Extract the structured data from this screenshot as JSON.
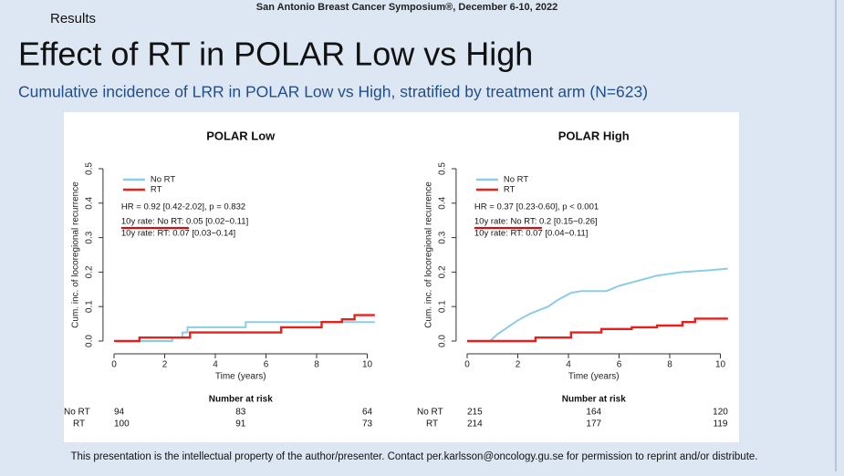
{
  "slide": {
    "conference": "San Antonio Breast Cancer Symposium®, December 6-10, 2022",
    "section": "Results",
    "title": "Effect of RT in POLAR Low vs High",
    "subtitle": "Cumulative incidence of LRR in POLAR Low vs High, stratified by treatment arm (N=623)",
    "footer": "This presentation is the intellectual property of the author/presenter.  Contact per.karlsson@oncology.gu.se for permission to reprint and/or distribute."
  },
  "chart_data": [
    {
      "type": "line",
      "title": "POLAR Low",
      "xlabel": "Time (years)",
      "ylabel": "Cum. inc. of locoregional recurrence",
      "xlim": [
        -0.4,
        10.4
      ],
      "ylim": [
        -0.02,
        0.52
      ],
      "xticks": [
        0,
        2,
        4,
        6,
        8,
        10
      ],
      "yticks": [
        {
          "value": 0,
          "label": "0.0"
        },
        0.1,
        0.2,
        0.3,
        0.4,
        0.5
      ],
      "legend": "top-left",
      "series": [
        {
          "name": "No RT",
          "color": "#8ccde6",
          "x": [
            0,
            2.3,
            2.3,
            2.7,
            2.7,
            2.9,
            2.9,
            5.2,
            5.2,
            10.3
          ],
          "values": [
            0,
            0,
            0.01,
            0.01,
            0.025,
            0.025,
            0.04,
            0.04,
            0.055,
            0.055
          ]
        },
        {
          "name": "RT",
          "color": "#e8201c",
          "x": [
            0,
            1,
            1,
            3,
            3,
            6.6,
            6.6,
            8.2,
            8.2,
            9.0,
            9.0,
            9.5,
            9.5,
            10.3
          ],
          "values": [
            0,
            0,
            0.01,
            0.01,
            0.025,
            0.025,
            0.04,
            0.04,
            0.055,
            0.055,
            0.063,
            0.063,
            0.075,
            0.075
          ]
        }
      ],
      "annotations": [
        "HR = 0.92 [0.42-2.02], p = 0.832",
        "10y rate: No RT: 0.05 [0.02−0.11]",
        "10y rate: RT: 0.07 [0.03−0.14]"
      ],
      "risk_table": {
        "title": "Number at risk",
        "rows": [
          {
            "label": "No RT",
            "values": [
              94,
              83,
              64
            ]
          },
          {
            "label": "RT",
            "values": [
              100,
              91,
              73
            ]
          }
        ]
      }
    },
    {
      "type": "line",
      "title": "POLAR High",
      "xlabel": "Time (years)",
      "ylabel": "Cum. inc. of locoregional recurrence",
      "xlim": [
        -0.4,
        10.4
      ],
      "ylim": [
        -0.02,
        0.52
      ],
      "xticks": [
        0,
        2,
        4,
        6,
        8,
        10
      ],
      "yticks": [
        {
          "value": 0,
          "label": "0.0"
        },
        0.1,
        0.2,
        0.3,
        0.4,
        0.5
      ],
      "legend": "top-left",
      "series": [
        {
          "name": "No RT",
          "color": "#8ccde6",
          "x": [
            0,
            0.9,
            1.2,
            1.5,
            2.0,
            2.5,
            3.2,
            3.6,
            4.1,
            4.5,
            5.5,
            6.0,
            6.5,
            7.0,
            7.5,
            8.5,
            9.5,
            10.3
          ],
          "values": [
            0,
            0,
            0.02,
            0.035,
            0.06,
            0.08,
            0.1,
            0.12,
            0.14,
            0.145,
            0.145,
            0.16,
            0.17,
            0.18,
            0.19,
            0.2,
            0.205,
            0.21
          ]
        },
        {
          "name": "RT",
          "color": "#e8201c",
          "x": [
            0,
            2.7,
            2.7,
            4.1,
            4.1,
            5.3,
            5.3,
            6.5,
            6.5,
            7.5,
            7.5,
            8.5,
            8.5,
            9.0,
            9.0,
            10.3
          ],
          "values": [
            0,
            0,
            0.01,
            0.01,
            0.025,
            0.025,
            0.035,
            0.035,
            0.04,
            0.04,
            0.045,
            0.045,
            0.055,
            0.055,
            0.065,
            0.065
          ]
        }
      ],
      "annotations": [
        "HR = 0.37 [0.23-0.60], p < 0.001",
        "10y rate: No RT: 0.2 [0.15−0.26]",
        "10y rate: RT: 0.07 [0.04−0.11]"
      ],
      "risk_table": {
        "title": "Number at risk",
        "rows": [
          {
            "label": "No RT",
            "values": [
              215,
              164,
              120
            ]
          },
          {
            "label": "RT",
            "values": [
              214,
              177,
              119
            ]
          }
        ]
      }
    }
  ]
}
